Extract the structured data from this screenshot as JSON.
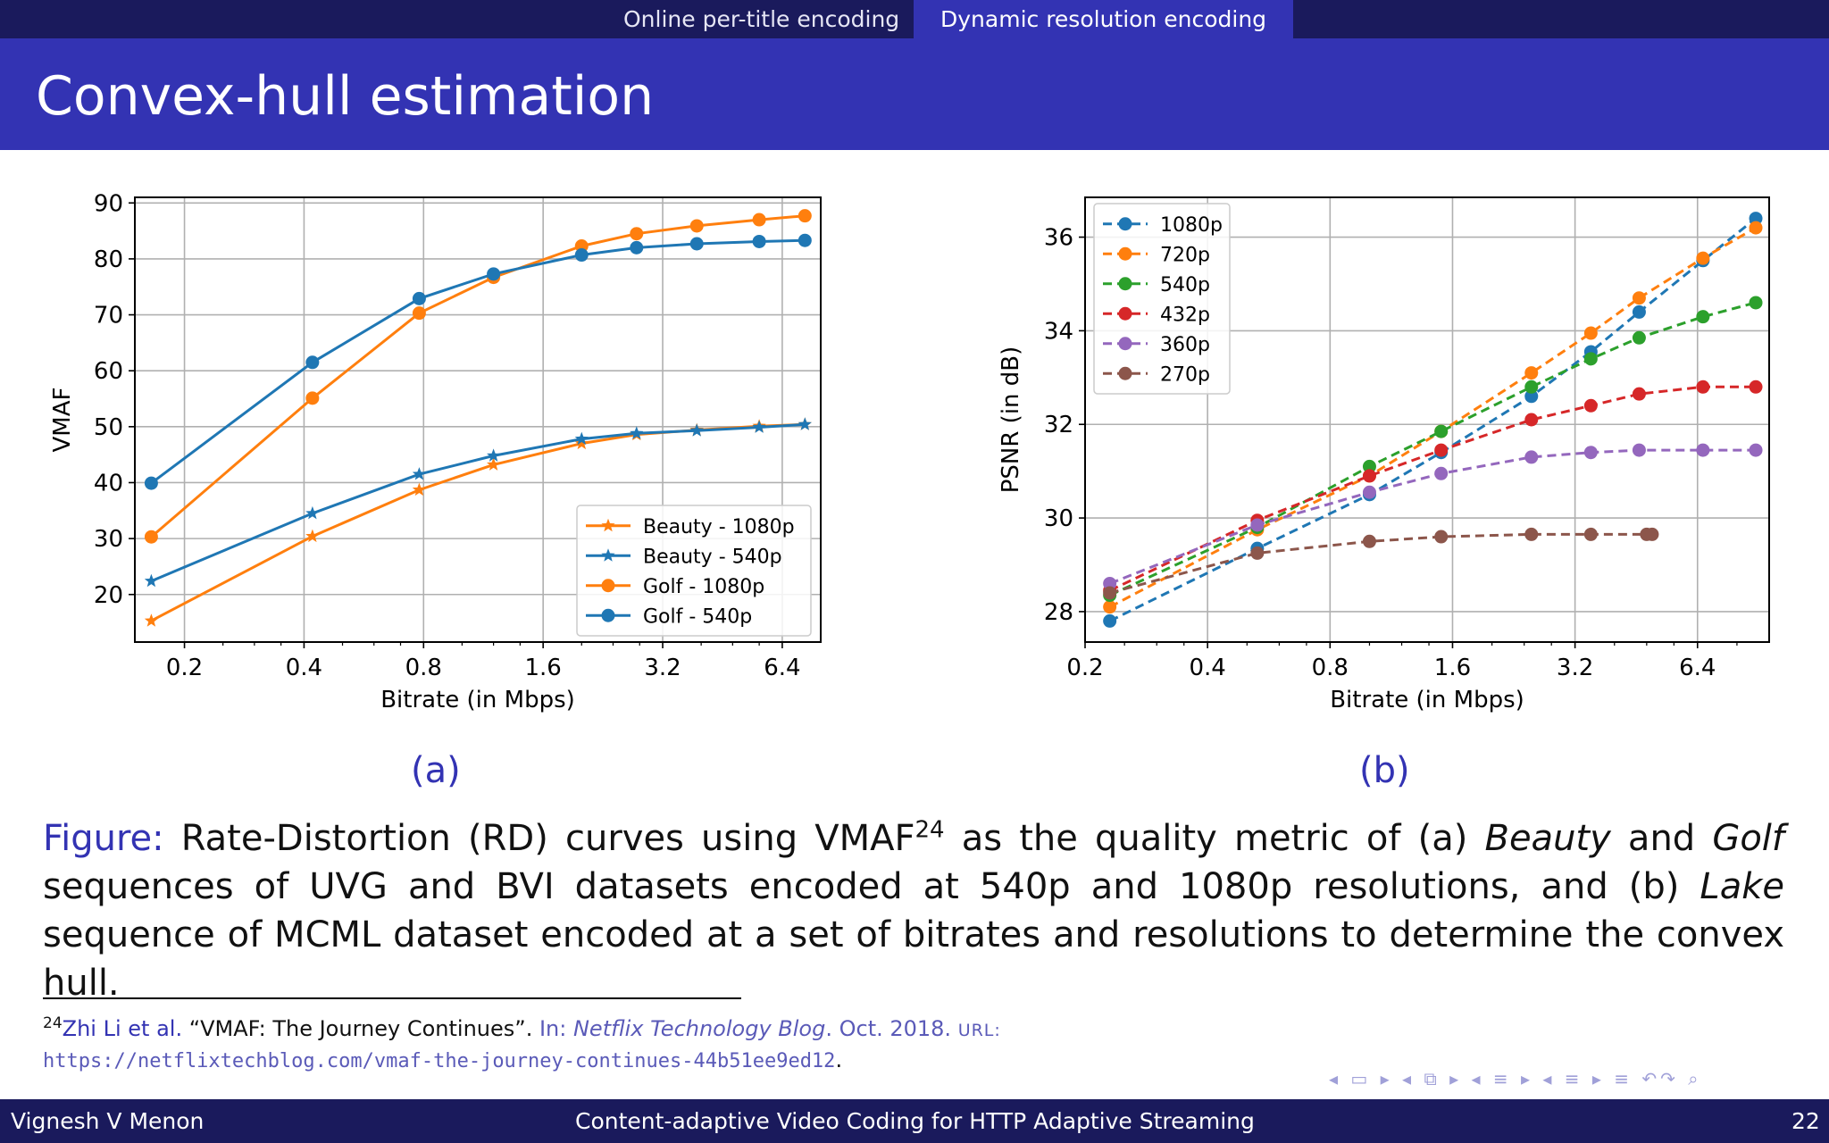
{
  "nav": {
    "tab1": "Online per-title encoding",
    "tab2": "Dynamic resolution encoding"
  },
  "slide": {
    "title": "Convex-hull estimation"
  },
  "chart_data": [
    {
      "type": "line",
      "title": "",
      "xlabel": "Bitrate (in Mbps)",
      "ylabel": "VMAF",
      "xscale": "log2",
      "xlim": [
        0.15,
        8.0
      ],
      "ylim": [
        11.5,
        91
      ],
      "xticks": [
        0.2,
        0.4,
        0.8,
        1.6,
        3.2,
        6.4
      ],
      "xtick_labels": [
        "0.2",
        "0.4",
        "0.8",
        "1.6",
        "3.2",
        "6.4"
      ],
      "yticks": [
        20,
        30,
        40,
        50,
        60,
        70,
        80,
        90
      ],
      "grid": true,
      "legend_position": "lower-right",
      "series": [
        {
          "name": "Beauty - 1080p",
          "color": "#ff7f0e",
          "marker": "star",
          "dashed": false,
          "x": [
            0.165,
            0.42,
            0.78,
            1.2,
            2.0,
            2.75,
            3.9,
            5.6,
            7.3
          ],
          "y": [
            15.3,
            30.4,
            38.7,
            43.2,
            47.0,
            48.6,
            49.4,
            50.1,
            50.4
          ]
        },
        {
          "name": "Beauty - 540p",
          "color": "#1f77b4",
          "marker": "star",
          "dashed": false,
          "x": [
            0.165,
            0.42,
            0.78,
            1.2,
            2.0,
            2.75,
            3.9,
            5.6,
            7.3
          ],
          "y": [
            22.4,
            34.5,
            41.5,
            44.8,
            47.8,
            48.8,
            49.3,
            49.9,
            50.4
          ]
        },
        {
          "name": "Golf - 1080p",
          "color": "#ff7f0e",
          "marker": "circle",
          "dashed": false,
          "x": [
            0.165,
            0.42,
            0.78,
            1.2,
            2.0,
            2.75,
            3.9,
            5.6,
            7.3
          ],
          "y": [
            30.3,
            55.1,
            70.3,
            76.7,
            82.3,
            84.5,
            85.9,
            87.0,
            87.7
          ]
        },
        {
          "name": "Golf -  540p",
          "color": "#1f77b4",
          "marker": "circle",
          "dashed": false,
          "x": [
            0.165,
            0.42,
            0.78,
            1.2,
            2.0,
            2.75,
            3.9,
            5.6,
            7.3
          ],
          "y": [
            39.9,
            61.5,
            72.9,
            77.3,
            80.7,
            82.0,
            82.7,
            83.1,
            83.3
          ]
        }
      ]
    },
    {
      "type": "line",
      "title": "",
      "xlabel": "Bitrate (in Mbps)",
      "ylabel": "PSNR (in dB)",
      "xscale": "log2",
      "xlim": [
        0.2,
        9.6
      ],
      "ylim": [
        27.35,
        36.85
      ],
      "xticks": [
        0.2,
        0.4,
        0.8,
        1.6,
        3.2,
        6.4
      ],
      "xtick_labels": [
        "0.2",
        "0.4",
        "0.8",
        "1.6",
        "3.2",
        "6.4"
      ],
      "yticks": [
        28,
        30,
        32,
        34,
        36
      ],
      "grid": true,
      "legend_position": "upper-left",
      "series": [
        {
          "name": "1080p",
          "color": "#1f77b4",
          "marker": "circle",
          "dashed": true,
          "x": [
            0.23,
            0.53,
            1.0,
            1.5,
            2.5,
            3.5,
            4.6,
            6.6,
            8.9
          ],
          "y": [
            27.8,
            29.35,
            30.5,
            31.4,
            32.6,
            33.55,
            34.4,
            35.5,
            36.4
          ]
        },
        {
          "name": "720p",
          "color": "#ff7f0e",
          "marker": "circle",
          "dashed": true,
          "x": [
            0.23,
            0.53,
            1.0,
            1.5,
            2.5,
            3.5,
            4.6,
            6.6,
            8.9
          ],
          "y": [
            28.1,
            29.75,
            30.9,
            31.85,
            33.1,
            33.95,
            34.7,
            35.55,
            36.2
          ]
        },
        {
          "name": "540p",
          "color": "#2ca02c",
          "marker": "circle",
          "dashed": true,
          "x": [
            0.23,
            0.53,
            1.0,
            1.5,
            2.5,
            3.5,
            4.6,
            6.6,
            8.9
          ],
          "y": [
            28.35,
            29.8,
            31.1,
            31.85,
            32.8,
            33.4,
            33.85,
            34.3,
            34.6
          ]
        },
        {
          "name": "432p",
          "color": "#d62728",
          "marker": "circle",
          "dashed": true,
          "x": [
            0.23,
            0.53,
            1.0,
            1.5,
            2.5,
            3.5,
            4.6,
            6.6,
            8.9
          ],
          "y": [
            28.45,
            29.95,
            30.9,
            31.45,
            32.1,
            32.4,
            32.65,
            32.8,
            32.8
          ]
        },
        {
          "name": "360p",
          "color": "#9467bd",
          "marker": "circle",
          "dashed": true,
          "x": [
            0.23,
            0.53,
            1.0,
            1.5,
            2.5,
            3.5,
            4.6,
            6.6,
            8.9
          ],
          "y": [
            28.6,
            29.85,
            30.55,
            30.95,
            31.3,
            31.4,
            31.45,
            31.45,
            31.45
          ]
        },
        {
          "name": "270p",
          "color": "#8c564b",
          "marker": "circle",
          "dashed": true,
          "x": [
            0.23,
            0.53,
            1.0,
            1.5,
            2.5,
            3.5,
            4.8,
            4.95
          ],
          "y": [
            28.4,
            29.25,
            29.5,
            29.6,
            29.65,
            29.65,
            29.65,
            29.65
          ]
        }
      ]
    }
  ],
  "subfigure_labels": {
    "a": "(a)",
    "b": "(b)"
  },
  "caption": {
    "label": "Figure:",
    "t1": " Rate-Distortion (RD) curves using VMAF",
    "ref": "24",
    "t2": " as the quality metric of (a) ",
    "em1": "Beauty",
    "t3": " and ",
    "em2": "Golf",
    "t4": " sequences of UVG and BVI datasets encoded at 540p and 1080p resolutions, and (b) ",
    "em3": "Lake",
    "t5": " sequence of MCML dataset encoded at a set of bitrates and resolutions to determine the convex hull."
  },
  "footnote": {
    "num": "24",
    "author": "Zhi Li et al.",
    "title": " “VMAF: The Journey Continues”. ",
    "in": "In: ",
    "journal": "Netflix Technology Blog",
    "date": ". Oct. 2018. ",
    "url_label": "URL:",
    "url": "https://netflixtechblog.com/vmaf-the-journey-continues-44b51ee9ed12",
    "end": "."
  },
  "nav_symbols": "◂ ▭ ▸ ◂ ⧉ ▸ ◂ ≡ ▸ ◂ ≡ ▸   ≡   ↶↷ ⌕",
  "footer": {
    "author": "Vignesh V Menon",
    "talk": "Content-adaptive Video Coding for HTTP Adaptive Streaming",
    "page": "22"
  }
}
